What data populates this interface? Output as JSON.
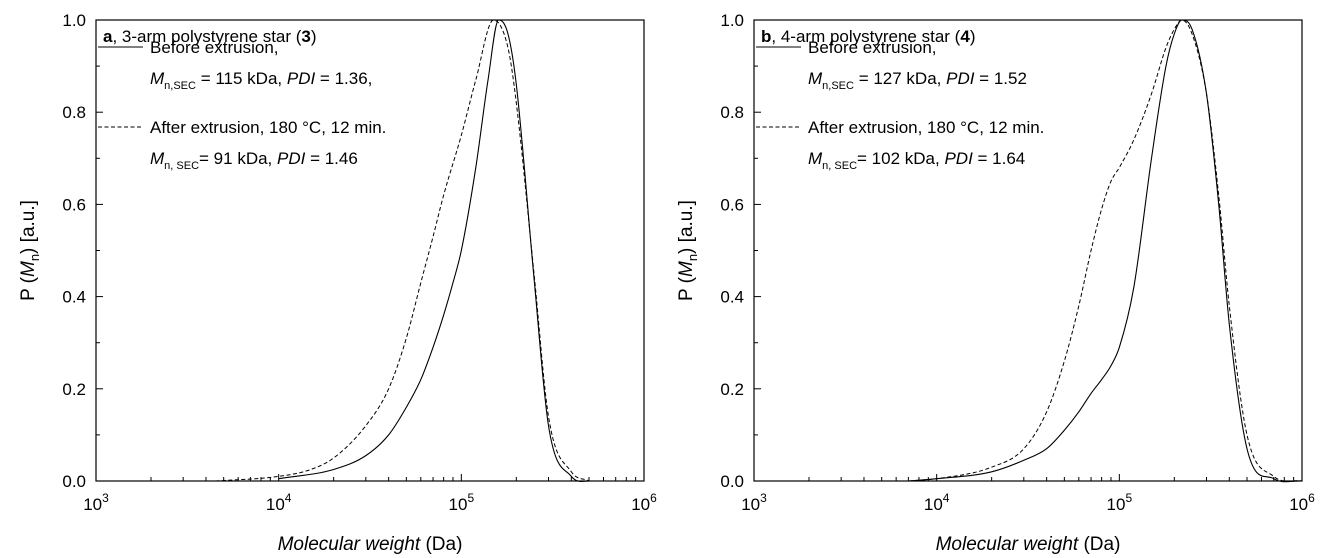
{
  "chart_data": [
    {
      "type": "line",
      "panel_letter": "a",
      "title": ", 3-arm polystyrene star (",
      "title_ref": "3",
      "title_end": ")",
      "xlabel": "Molecular weight",
      "xlabel_unit": " (Da)",
      "ylabel_prefix": "P (",
      "ylabel_var": "M",
      "ylabel_sub": "n",
      "ylabel_suffix": ") [a.u.]",
      "x_scale": "log",
      "xlim": [
        1000,
        1000000
      ],
      "ylim": [
        0.0,
        1.0
      ],
      "x_ticks": [
        {
          "base": "10",
          "exp": "3"
        },
        {
          "base": "10",
          "exp": "4"
        },
        {
          "base": "10",
          "exp": "5"
        },
        {
          "base": "10",
          "exp": "6"
        }
      ],
      "y_ticks": [
        "0.0",
        "0.2",
        "0.4",
        "0.6",
        "0.8",
        "1.0"
      ],
      "legend": [
        {
          "style": "solid",
          "line1": "Before extrusion,",
          "line2": {
            "var": "M",
            "sub": "n,SEC",
            "value": " = 115 kDa, ",
            "pdi": "PDI",
            "pdi_value": " = 1.36,"
          }
        },
        {
          "style": "dashed",
          "line1": "After extrusion, 180 °C, 12 min.",
          "line2": {
            "var": "M",
            "sub": "n, SEC",
            "value": "= 91 kDa, ",
            "pdi": "PDI",
            "pdi_value": " = 1.46"
          }
        }
      ],
      "series": [
        {
          "style": "solid",
          "x": [
            10000,
            20000,
            30000,
            40000,
            50000,
            60000,
            70000,
            80000,
            90000,
            100000,
            120000,
            140000,
            160000,
            180000,
            200000,
            250000,
            300000,
            400000,
            500000,
            800000
          ],
          "y": [
            0.005,
            0.025,
            0.055,
            0.1,
            0.16,
            0.22,
            0.29,
            0.36,
            0.43,
            0.5,
            0.68,
            0.87,
            1.0,
            0.97,
            0.86,
            0.44,
            0.12,
            0.01,
            0.0,
            0.0
          ]
        },
        {
          "style": "dashed",
          "x": [
            4500,
            10000,
            15000,
            20000,
            30000,
            40000,
            50000,
            60000,
            70000,
            80000,
            100000,
            120000,
            150000,
            180000,
            200000,
            250000,
            300000,
            400000,
            500000
          ],
          "y": [
            0.0,
            0.01,
            0.025,
            0.05,
            0.12,
            0.2,
            0.31,
            0.43,
            0.53,
            0.62,
            0.75,
            0.87,
            1.0,
            0.94,
            0.82,
            0.45,
            0.14,
            0.02,
            0.0
          ]
        }
      ]
    },
    {
      "type": "line",
      "panel_letter": "b",
      "title": ", 4-arm polystyrene star (",
      "title_ref": "4",
      "title_end": ")",
      "xlabel": "Molecular weight",
      "xlabel_unit": " (Da)",
      "ylabel_prefix": "P (",
      "ylabel_var": "M",
      "ylabel_sub": "n",
      "ylabel_suffix": ") [a.u.]",
      "x_scale": "log",
      "xlim": [
        1000,
        1000000
      ],
      "ylim": [
        0.0,
        1.0
      ],
      "x_ticks": [
        {
          "base": "10",
          "exp": "3"
        },
        {
          "base": "10",
          "exp": "4"
        },
        {
          "base": "10",
          "exp": "5"
        },
        {
          "base": "10",
          "exp": "6"
        }
      ],
      "y_ticks": [
        "0.0",
        "0.2",
        "0.4",
        "0.6",
        "0.8",
        "1.0"
      ],
      "legend": [
        {
          "style": "solid",
          "line1": "Before extrusion,",
          "line2": {
            "var": "M",
            "sub": "n,SEC",
            "value": " = 127 kDa, ",
            "pdi": "PDI",
            "pdi_value": " = 1.52"
          }
        },
        {
          "style": "dashed",
          "line1": "After extrusion, 180 °C, 12 min.",
          "line2": {
            "var": "M",
            "sub": "n, SEC",
            "value": "= 102 kDa, ",
            "pdi": "PDI",
            "pdi_value": " = 1.64"
          }
        }
      ],
      "series": [
        {
          "style": "solid",
          "x": [
            7000,
            10000,
            20000,
            30000,
            40000,
            50000,
            60000,
            70000,
            80000,
            90000,
            100000,
            120000,
            150000,
            180000,
            200000,
            220000,
            250000,
            300000,
            350000,
            400000,
            500000,
            700000,
            1000000
          ],
          "y": [
            0.0,
            0.005,
            0.02,
            0.045,
            0.07,
            0.11,
            0.15,
            0.19,
            0.22,
            0.25,
            0.29,
            0.42,
            0.7,
            0.9,
            0.97,
            1.0,
            0.98,
            0.84,
            0.6,
            0.34,
            0.07,
            0.005,
            0.0
          ]
        },
        {
          "style": "dashed",
          "x": [
            7000,
            10000,
            20000,
            30000,
            40000,
            50000,
            60000,
            70000,
            80000,
            90000,
            100000,
            120000,
            150000,
            180000,
            200000,
            220000,
            250000,
            300000,
            350000,
            400000,
            500000,
            700000,
            1000000
          ],
          "y": [
            0.0,
            0.005,
            0.03,
            0.07,
            0.15,
            0.26,
            0.38,
            0.5,
            0.59,
            0.65,
            0.68,
            0.74,
            0.84,
            0.94,
            0.98,
            1.0,
            0.97,
            0.84,
            0.62,
            0.38,
            0.1,
            0.01,
            0.0
          ]
        }
      ]
    }
  ]
}
